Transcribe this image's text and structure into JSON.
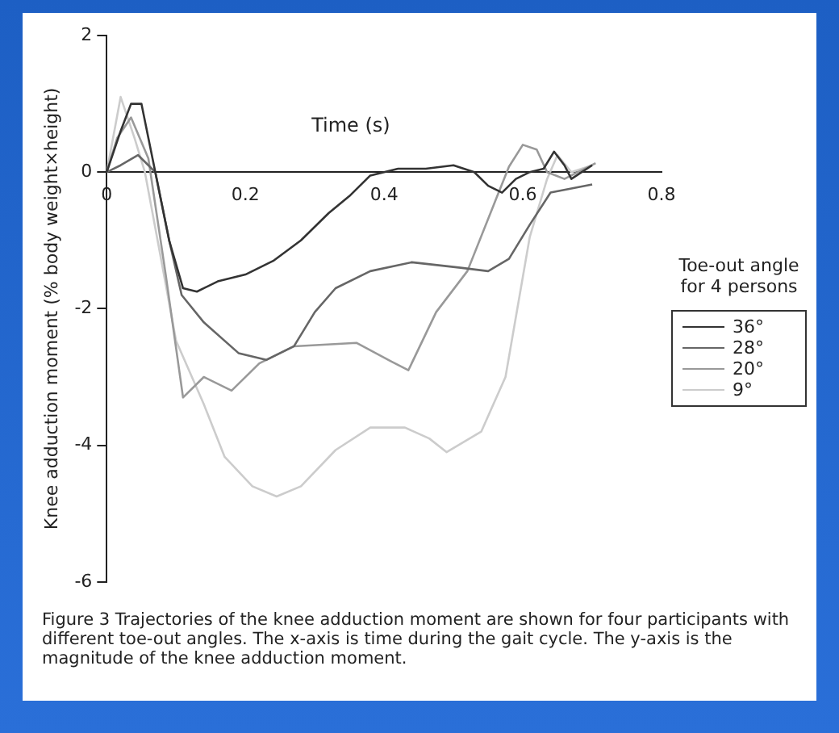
{
  "chart_data": {
    "type": "line",
    "xlabel": "Time (s)",
    "ylabel": "Knee adduction moment (% body weight×height)",
    "legend_title": "Toe-out angle for 4 persons",
    "legend": "right",
    "xlim": [
      0,
      0.8
    ],
    "ylim": [
      -6,
      2
    ],
    "xticks": [
      0,
      0.2,
      0.4,
      0.6,
      0.8
    ],
    "yticks": [
      -6,
      -4,
      -2,
      0,
      2
    ],
    "annotations": [
      "Figure 3 Trajectories of the knee adduction moment are shown for four participants with different toe-out angles. The x-axis is time during the gait cycle. The y-axis is the magnitude of the knee adduction moment."
    ],
    "series": [
      {
        "name": "36°",
        "color": "#333333",
        "x": [
          0,
          0.02,
          0.035,
          0.05,
          0.07,
          0.09,
          0.11,
          0.13,
          0.16,
          0.2,
          0.24,
          0.28,
          0.32,
          0.35,
          0.38,
          0.42,
          0.46,
          0.5,
          0.53,
          0.55,
          0.57,
          0.59,
          0.61,
          0.63,
          0.645,
          0.66,
          0.67,
          0.7
        ],
        "values": [
          0,
          0.6,
          1.0,
          1.0,
          0.0,
          -1.0,
          -1.7,
          -1.75,
          -1.6,
          -1.5,
          -1.3,
          -1.0,
          -0.6,
          -0.35,
          -0.05,
          0.05,
          0.05,
          0.1,
          0,
          -0.2,
          -0.3,
          -0.1,
          0,
          0.05,
          0.3,
          0.1,
          -0.1,
          0.1
        ]
      },
      {
        "name": "28°",
        "color": "#666666",
        "x": [
          0,
          0.02,
          0.045,
          0.07,
          0.09,
          0.108,
          0.14,
          0.19,
          0.23,
          0.27,
          0.3,
          0.33,
          0.38,
          0.44,
          0.51,
          0.55,
          0.58,
          0.61,
          0.64,
          0.7
        ],
        "values": [
          0,
          0.1,
          0.25,
          0,
          -1.0,
          -1.8,
          -2.2,
          -2.65,
          -2.75,
          -2.55,
          -2.05,
          -1.7,
          -1.45,
          -1.32,
          -1.4,
          -1.45,
          -1.27,
          -0.77,
          -0.3,
          -0.18
        ]
      },
      {
        "name": "20°",
        "color": "#999999",
        "x": [
          0,
          0.015,
          0.035,
          0.06,
          0.085,
          0.11,
          0.14,
          0.18,
          0.22,
          0.27,
          0.36,
          0.41,
          0.435,
          0.475,
          0.52,
          0.56,
          0.58,
          0.6,
          0.62,
          0.635,
          0.66,
          0.705
        ],
        "values": [
          0,
          0.5,
          0.8,
          0.2,
          -1.5,
          -3.3,
          -3.0,
          -3.2,
          -2.8,
          -2.55,
          -2.5,
          -2.77,
          -2.9,
          -2.05,
          -1.45,
          -0.43,
          0.08,
          0.4,
          0.33,
          0,
          -0.1,
          0.13
        ]
      },
      {
        "name": "9°",
        "color": "#cccccc",
        "x": [
          0,
          0.02,
          0.04,
          0.055,
          0.077,
          0.1,
          0.14,
          0.17,
          0.21,
          0.245,
          0.28,
          0.33,
          0.38,
          0.43,
          0.465,
          0.49,
          0.54,
          0.575,
          0.61,
          0.635,
          0.65,
          0.67,
          0.7
        ],
        "values": [
          0,
          1.1,
          0.5,
          0,
          -1.2,
          -2.47,
          -3.4,
          -4.17,
          -4.6,
          -4.75,
          -4.6,
          -4.07,
          -3.74,
          -3.74,
          -3.9,
          -4.1,
          -3.8,
          -3.0,
          -0.95,
          -0.1,
          0.25,
          0,
          0.1
        ]
      }
    ]
  }
}
